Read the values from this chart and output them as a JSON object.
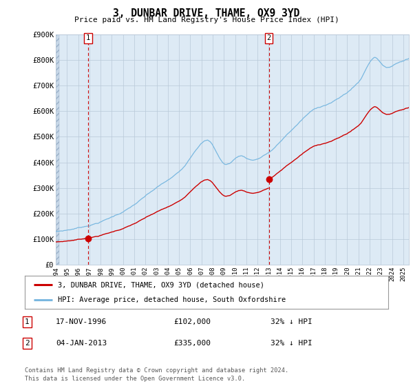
{
  "title": "3, DUNBAR DRIVE, THAME, OX9 3YD",
  "subtitle": "Price paid vs. HM Land Registry's House Price Index (HPI)",
  "ylim": [
    0,
    900000
  ],
  "yticks": [
    0,
    100000,
    200000,
    300000,
    400000,
    500000,
    600000,
    700000,
    800000,
    900000
  ],
  "ytick_labels": [
    "£0",
    "£100K",
    "£200K",
    "£300K",
    "£400K",
    "£500K",
    "£600K",
    "£700K",
    "£800K",
    "£900K"
  ],
  "xlim_start": 1994.0,
  "xlim_end": 2025.5,
  "sale1_date": 1996.88,
  "sale1_price": 102000,
  "sale2_date": 2013.02,
  "sale2_price": 335000,
  "hpi_color": "#7ab8e0",
  "price_color": "#cc0000",
  "dot_color": "#cc0000",
  "vline_color": "#cc0000",
  "bg_color": "#ddeaf5",
  "grid_color": "#b8c8d8",
  "legend_label_price": "3, DUNBAR DRIVE, THAME, OX9 3YD (detached house)",
  "legend_label_hpi": "HPI: Average price, detached house, South Oxfordshire",
  "footer1": "Contains HM Land Registry data © Crown copyright and database right 2024.",
  "footer2": "This data is licensed under the Open Government Licence v3.0.",
  "annot1_date": "17-NOV-1996",
  "annot1_price": "£102,000",
  "annot1_hpi": "32% ↓ HPI",
  "annot2_date": "04-JAN-2013",
  "annot2_price": "£335,000",
  "annot2_hpi": "32% ↓ HPI"
}
